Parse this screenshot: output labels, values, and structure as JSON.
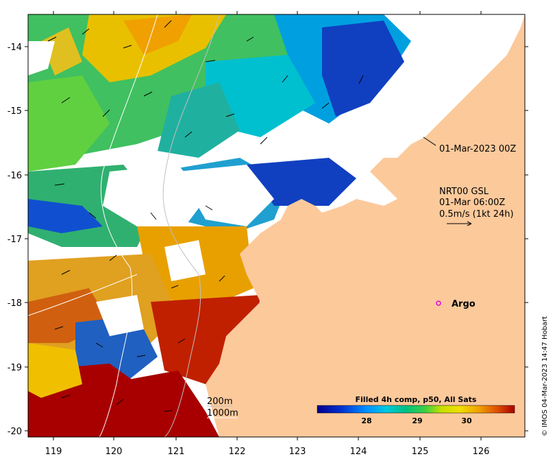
{
  "map": {
    "lat_ticks": [
      "-14",
      "-15",
      "-16",
      "-17",
      "-18",
      "-19",
      "-20"
    ],
    "lon_ticks": [
      "119",
      "120",
      "121",
      "122",
      "123",
      "124",
      "125",
      "126"
    ],
    "land_color": "#fcc99b",
    "sst_colors": [
      "#00008b",
      "#0030d0",
      "#0090ff",
      "#00c8e0",
      "#00c080",
      "#40d040",
      "#c8e000",
      "#f0e000",
      "#f0a000",
      "#e05000",
      "#a80000"
    ]
  },
  "annotations": {
    "time_label": "01-Mar-2023 00Z",
    "current_source": "NRT00 GSL",
    "current_time": "01-Mar 06:00Z",
    "current_scale": "0.5m/s (1kt 24h)",
    "argo_label": "Argo",
    "isobath_200": "200m",
    "isobath_1000": "1000m"
  },
  "colorbar": {
    "title": "Filled 4h comp, p50, All Sats",
    "ticks": [
      "28",
      "29",
      "30"
    ]
  },
  "credit": "© IMOS 04-Mar-2023 14:47 Hobart"
}
